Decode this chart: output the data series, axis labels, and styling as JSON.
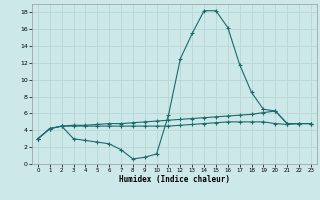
{
  "xlabel": "Humidex (Indice chaleur)",
  "bg_color": "#cce8e8",
  "grid_color": "#b8d4d4",
  "line_color": "#1a6b6b",
  "xlim": [
    -0.5,
    23.5
  ],
  "ylim": [
    0,
    19
  ],
  "yticks": [
    0,
    2,
    4,
    6,
    8,
    10,
    12,
    14,
    16,
    18
  ],
  "xticks": [
    0,
    1,
    2,
    3,
    4,
    5,
    6,
    7,
    8,
    9,
    10,
    11,
    12,
    13,
    14,
    15,
    16,
    17,
    18,
    19,
    20,
    21,
    22,
    23
  ],
  "line1_x": [
    0,
    1,
    2,
    3,
    4,
    5,
    6,
    7,
    8,
    9,
    10,
    11,
    12,
    13,
    14,
    15,
    16,
    17,
    18,
    19,
    20,
    21,
    22,
    23
  ],
  "line1_y": [
    3.0,
    4.2,
    4.5,
    4.6,
    4.6,
    4.7,
    4.8,
    4.8,
    4.9,
    5.0,
    5.1,
    5.2,
    5.3,
    5.4,
    5.5,
    5.6,
    5.7,
    5.8,
    5.9,
    6.1,
    6.3,
    4.8,
    4.8,
    4.8
  ],
  "line2_x": [
    0,
    1,
    2,
    3,
    4,
    5,
    6,
    7,
    8,
    9,
    10,
    11,
    12,
    13,
    14,
    15,
    16,
    17,
    18,
    19,
    20,
    21,
    22,
    23
  ],
  "line2_y": [
    3.0,
    4.2,
    4.5,
    3.0,
    2.8,
    2.6,
    2.4,
    1.7,
    0.6,
    0.8,
    1.2,
    5.8,
    12.5,
    15.5,
    18.2,
    18.2,
    16.2,
    11.8,
    8.5,
    6.5,
    6.3,
    4.8,
    4.8,
    4.8
  ],
  "line3_x": [
    0,
    1,
    2,
    3,
    4,
    5,
    6,
    7,
    8,
    9,
    10,
    11,
    12,
    13,
    14,
    15,
    16,
    17,
    18,
    19,
    20,
    21,
    22,
    23
  ],
  "line3_y": [
    3.0,
    4.2,
    4.5,
    4.5,
    4.5,
    4.5,
    4.5,
    4.5,
    4.5,
    4.5,
    4.5,
    4.5,
    4.6,
    4.7,
    4.8,
    4.9,
    5.0,
    5.0,
    5.0,
    5.0,
    4.8,
    4.7,
    4.8,
    4.8
  ]
}
